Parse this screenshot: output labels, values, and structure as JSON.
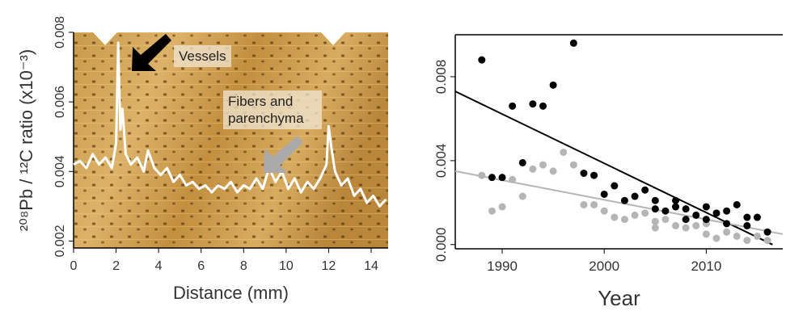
{
  "chart_data": [
    {
      "type": "line",
      "x": [
        0,
        0.3,
        0.6,
        0.9,
        1.2,
        1.5,
        1.8,
        2.0,
        2.1,
        2.2,
        2.3,
        2.45,
        2.7,
        3.0,
        3.3,
        3.5,
        3.8,
        4.1,
        4.4,
        4.7,
        5.0,
        5.3,
        5.6,
        5.9,
        6.2,
        6.5,
        6.8,
        7.1,
        7.4,
        7.7,
        8.0,
        8.3,
        8.6,
        8.9,
        9.2,
        9.5,
        9.8,
        10.1,
        10.4,
        10.7,
        11.0,
        11.3,
        11.6,
        11.9,
        12.0,
        12.15,
        12.3,
        12.6,
        12.9,
        13.2,
        13.5,
        13.8,
        14.1,
        14.4,
        14.7
      ],
      "values": [
        0.0042,
        0.0043,
        0.0041,
        0.0045,
        0.0042,
        0.0044,
        0.0041,
        0.0048,
        0.0077,
        0.0052,
        0.0058,
        0.0045,
        0.0042,
        0.0044,
        0.004,
        0.0046,
        0.0041,
        0.0039,
        0.0041,
        0.0037,
        0.0039,
        0.0036,
        0.0037,
        0.0035,
        0.0036,
        0.0034,
        0.0036,
        0.0035,
        0.0037,
        0.0034,
        0.0036,
        0.0035,
        0.0038,
        0.0035,
        0.0041,
        0.0037,
        0.004,
        0.0035,
        0.0038,
        0.0034,
        0.0037,
        0.0035,
        0.0038,
        0.0042,
        0.0053,
        0.0046,
        0.004,
        0.0036,
        0.0038,
        0.0033,
        0.0035,
        0.0031,
        0.0033,
        0.003,
        0.0032
      ],
      "color": "#ffffff",
      "xlim": [
        0,
        14.8
      ],
      "ylim": [
        0.0018,
        0.008
      ],
      "xticks": [
        0,
        2,
        4,
        6,
        8,
        10,
        12,
        14
      ],
      "yticks": [
        0.002,
        0.004,
        0.006,
        0.008
      ],
      "xlabel": "Distance (mm)",
      "ylabel": "²⁰⁸Pb / ¹²C ratio (x10⁻³)",
      "annotations": [
        "Vessels",
        "Fibers and parenchyma"
      ]
    },
    {
      "type": "scatter",
      "series": [
        {
          "color": "#000000",
          "x": [
            1988,
            1989,
            1990,
            1991,
            1992,
            1993,
            1994,
            1995,
            1997,
            1998,
            1999,
            2000,
            2001,
            2002,
            2003,
            2004,
            2005,
            2005,
            2006,
            2007,
            2007,
            2008,
            2008,
            2009,
            2010,
            2010,
            2011,
            2012,
            2012,
            2013,
            2014,
            2014,
            2015,
            2016
          ],
          "values": [
            0.0088,
            0.0032,
            0.0032,
            0.0066,
            0.0039,
            0.0067,
            0.0066,
            0.0076,
            0.0096,
            0.0034,
            0.0033,
            0.0024,
            0.0028,
            0.0021,
            0.0023,
            0.0026,
            0.0021,
            0.0017,
            0.0016,
            0.0021,
            0.0018,
            0.0017,
            0.0012,
            0.0014,
            0.0018,
            0.0012,
            0.0015,
            0.0016,
            0.001,
            0.0019,
            0.0013,
            0.0009,
            0.0013,
            0.0006
          ]
        },
        {
          "color": "#b5b5b5",
          "x": [
            1988,
            1989,
            1990,
            1991,
            1992,
            1993,
            1994,
            1995,
            1996,
            1997,
            1998,
            1999,
            2000,
            2001,
            2002,
            2003,
            2004,
            2005,
            2005,
            2006,
            2007,
            2008,
            2009,
            2010,
            2010,
            2011,
            2012,
            2013,
            2014,
            2015,
            2016
          ],
          "values": [
            0.0033,
            0.0016,
            0.0018,
            0.0031,
            0.0023,
            0.0036,
            0.0038,
            0.0035,
            0.0044,
            0.0038,
            0.0019,
            0.0019,
            0.0016,
            0.0013,
            0.0012,
            0.0014,
            0.0015,
            0.0011,
            0.0008,
            0.0012,
            0.0009,
            0.0008,
            0.0009,
            0.001,
            0.0005,
            0.0003,
            0.0006,
            0.0004,
            0.0002,
            0.0004,
            0.0002
          ]
        }
      ],
      "fits": [
        {
          "color": "#000000",
          "x": [
            1985.4,
            2016.5
          ],
          "values": [
            0.0073,
            0.0
          ]
        },
        {
          "color": "#b5b5b5",
          "x": [
            1985.4,
            2017.5
          ],
          "values": [
            0.0035,
            0.0005
          ]
        }
      ],
      "xlim": [
        1985.4,
        2017.5
      ],
      "ylim": [
        -0.0002,
        0.01
      ],
      "xticks": [
        1990,
        2000,
        2010
      ],
      "yticks": [
        {
          "value": 0,
          "label": "0.000"
        },
        0.004,
        0.008
      ],
      "xlabel": "Year"
    }
  ]
}
